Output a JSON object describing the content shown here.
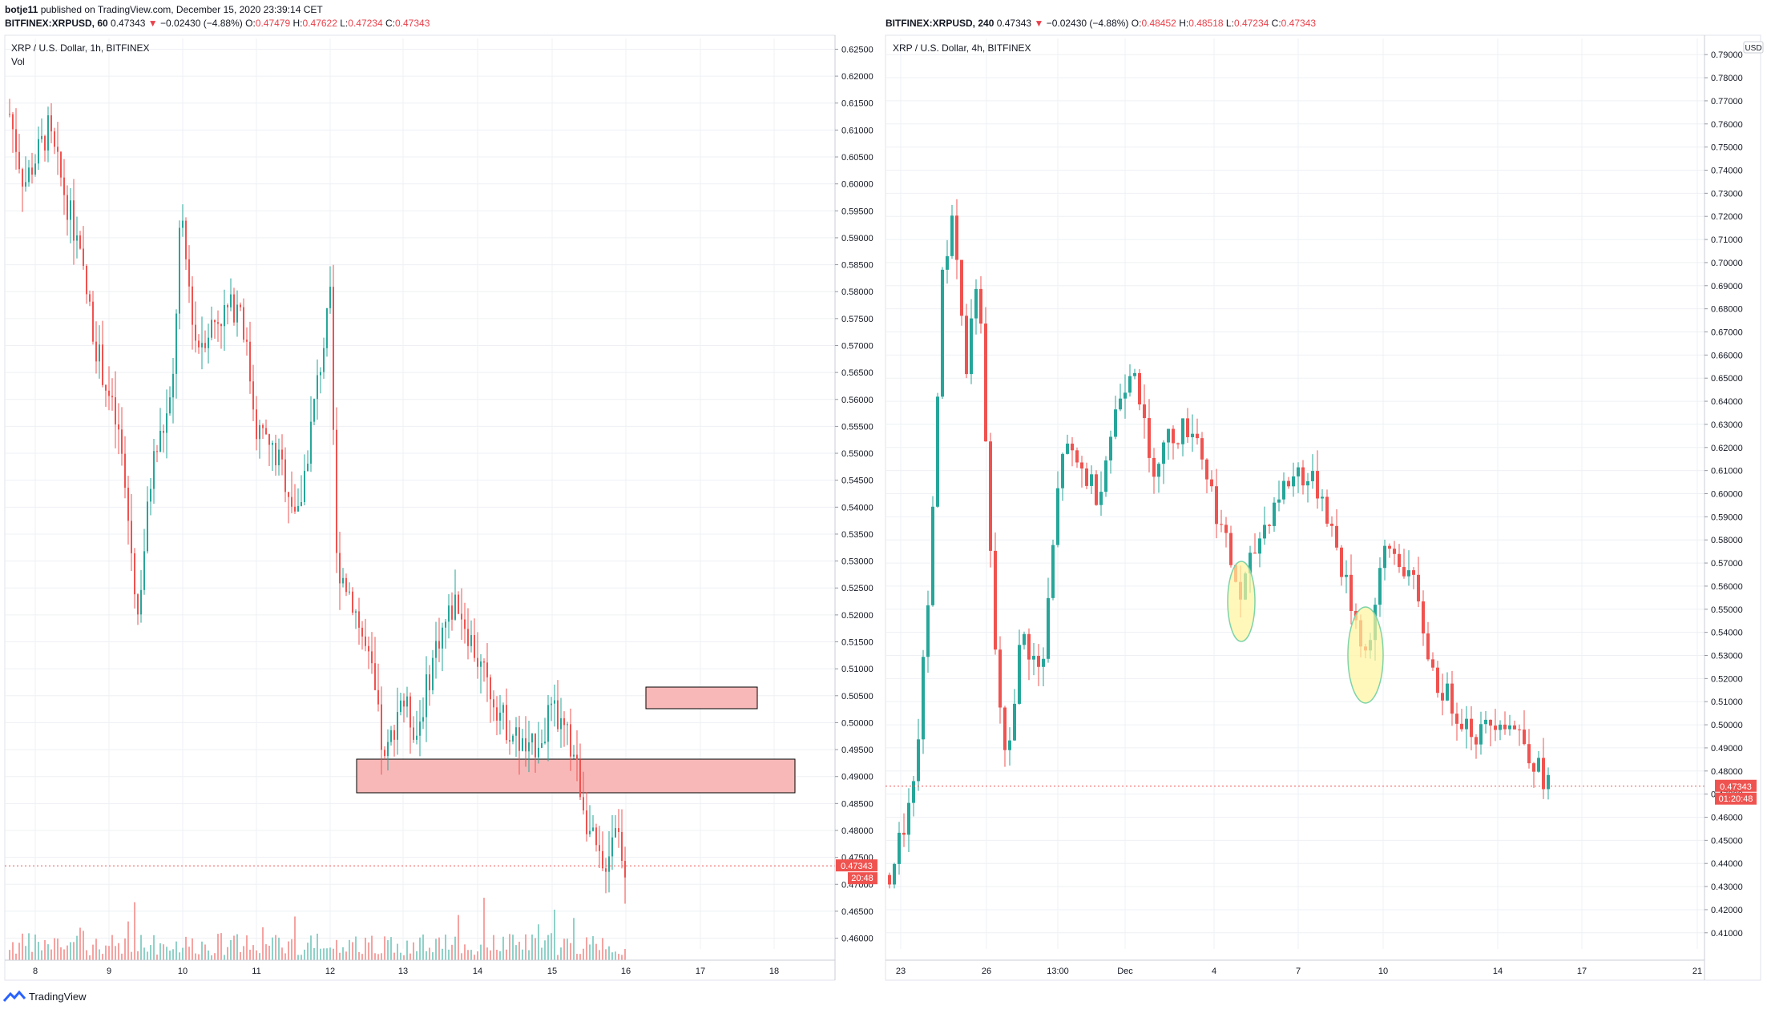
{
  "header": {
    "author": "botje11",
    "published": "published on TradingView.com, December 15, 2020 23:39:14 CET"
  },
  "left": {
    "header": {
      "symbol": "BITFINEX:XRPUSD, 60",
      "last": "0.47343",
      "arrow": "▼",
      "change": "−0.02430 (−4.88%)",
      "o_label": "O:",
      "o_value": "0.47479",
      "h_label": "H:",
      "h_value": "0.47622",
      "l_label": "L:",
      "l_value": "0.47234",
      "c_label": "C:",
      "c_value": "0.47343"
    },
    "title": "XRP / U.S. Dollar, 1h, BITFINEX",
    "vol_label": "Vol",
    "price_tag": "0.47343",
    "time_tag": "20:48",
    "x_ticks": [
      "8",
      "9",
      "10",
      "11",
      "12",
      "13",
      "14",
      "15",
      "16",
      "17",
      "18"
    ],
    "y_ticks": [
      "0.62500",
      "0.62000",
      "0.61500",
      "0.61000",
      "0.60500",
      "0.60000",
      "0.59500",
      "0.59000",
      "0.58500",
      "0.58000",
      "0.57500",
      "0.57000",
      "0.56500",
      "0.56000",
      "0.55500",
      "0.55000",
      "0.54500",
      "0.54000",
      "0.53500",
      "0.53000",
      "0.52500",
      "0.52000",
      "0.51500",
      "0.51000",
      "0.50500",
      "0.50000",
      "0.49500",
      "0.49000",
      "0.48500",
      "0.48000",
      "0.47500",
      "0.47000",
      "0.46500",
      "0.46000"
    ]
  },
  "right": {
    "header": {
      "symbol": "BITFINEX:XRPUSD, 240",
      "last": "0.47343",
      "arrow": "▼",
      "change": "−0.02430 (−4.88%)",
      "o_label": "O:",
      "o_value": "0.48452",
      "h_label": "H:",
      "h_value": "0.48518",
      "l_label": "L:",
      "l_value": "0.47234",
      "c_label": "C:",
      "c_value": "0.47343"
    },
    "title": "XRP / U.S. Dollar, 4h, BITFINEX",
    "currency": "USD",
    "price_tag": "0.47343",
    "time_tag": "01:20:48",
    "x_ticks": [
      "23",
      "26",
      "13:00",
      "Dec",
      "4",
      "7",
      "10",
      "14",
      "17",
      "21"
    ],
    "y_ticks": [
      "0.79000",
      "0.78000",
      "0.77000",
      "0.76000",
      "0.75000",
      "0.74000",
      "0.73000",
      "0.72000",
      "0.71000",
      "0.70000",
      "0.69000",
      "0.68000",
      "0.67000",
      "0.66000",
      "0.65000",
      "0.64000",
      "0.63000",
      "0.62000",
      "0.61000",
      "0.60000",
      "0.59000",
      "0.58000",
      "0.57000",
      "0.56000",
      "0.55000",
      "0.54000",
      "0.53000",
      "0.52000",
      "0.51000",
      "0.50000",
      "0.49000",
      "0.48000",
      "0.47000",
      "0.46000",
      "0.45000",
      "0.44000",
      "0.43000",
      "0.42000",
      "0.41000"
    ]
  },
  "footer": {
    "brand": "TradingView"
  },
  "colors": {
    "up": "#26a69a",
    "down": "#ef5350",
    "zone": "#f8b8b8",
    "highlight": "#fff59d"
  },
  "chart_data": [
    {
      "type": "candlestick",
      "title": "XRP / U.S. Dollar, 1h, BITFINEX",
      "ylim": [
        0.458,
        0.627
      ],
      "x_axis_ticks": [
        "8",
        "9",
        "10",
        "11",
        "12",
        "13",
        "14",
        "15",
        "16",
        "17",
        "18"
      ],
      "series": [
        {
          "name": "Vol",
          "type": "bar"
        }
      ],
      "close_points": [
        {
          "x": "Dec 8 00:00",
          "y": 0.617
        },
        {
          "x": "Dec 8 12:00",
          "y": 0.609
        },
        {
          "x": "Dec 9 00:00",
          "y": 0.552
        },
        {
          "x": "Dec 9 08:00",
          "y": 0.52
        },
        {
          "x": "Dec 10 00:00",
          "y": 0.594
        },
        {
          "x": "Dec 10 12:00",
          "y": 0.572
        },
        {
          "x": "Dec 11 00:00",
          "y": 0.578
        },
        {
          "x": "Dec 11 12:00",
          "y": 0.537
        },
        {
          "x": "Dec 12 00:00",
          "y": 0.579
        },
        {
          "x": "Dec 12 06:00",
          "y": 0.528
        },
        {
          "x": "Dec 13 00:00",
          "y": 0.49
        },
        {
          "x": "Dec 13 12:00",
          "y": 0.523
        },
        {
          "x": "Dec 14 12:00",
          "y": 0.494
        },
        {
          "x": "Dec 15 00:00",
          "y": 0.502
        },
        {
          "x": "Dec 15 12:00",
          "y": 0.472
        },
        {
          "x": "Dec 15 22:00",
          "y": 0.47343
        }
      ],
      "zones": [
        {
          "from_x": "Dec 12 08:00",
          "to_x": "Dec 18 04:00",
          "low": 0.4879,
          "high": 0.4939
        },
        {
          "from_x": "Dec 16 06:00",
          "to_x": "Dec 17 18:00",
          "low": 0.5028,
          "high": 0.5068
        }
      ],
      "last_price": 0.47343
    },
    {
      "type": "candlestick",
      "title": "XRP / U.S. Dollar, 4h, BITFINEX",
      "ylim": [
        0.403,
        0.797
      ],
      "x_axis_ticks": [
        "23",
        "26",
        "13:00",
        "Dec",
        "4",
        "7",
        "10",
        "14",
        "17",
        "21"
      ],
      "close_points": [
        {
          "x": "Nov 23",
          "y": 0.43
        },
        {
          "x": "Nov 24",
          "y": 0.73
        },
        {
          "x": "Nov 25",
          "y": 0.7
        },
        {
          "x": "Nov 26",
          "y": 0.53
        },
        {
          "x": "Nov 27",
          "y": 0.48
        },
        {
          "x": "Nov 28",
          "y": 0.54
        },
        {
          "x": "Nov 29",
          "y": 0.63
        },
        {
          "x": "Nov 30",
          "y": 0.59
        },
        {
          "x": "Dec 1",
          "y": 0.66
        },
        {
          "x": "Dec 2",
          "y": 0.61
        },
        {
          "x": "Dec 3",
          "y": 0.63
        },
        {
          "x": "Dec 4",
          "y": 0.59
        },
        {
          "x": "Dec 5",
          "y": 0.55
        },
        {
          "x": "Dec 6",
          "y": 0.58
        },
        {
          "x": "Dec 7",
          "y": 0.62
        },
        {
          "x": "Dec 8",
          "y": 0.59
        },
        {
          "x": "Dec 9",
          "y": 0.53
        },
        {
          "x": "Dec 10",
          "y": 0.58
        },
        {
          "x": "Dec 11",
          "y": 0.57
        },
        {
          "x": "Dec 12",
          "y": 0.52
        },
        {
          "x": "Dec 13",
          "y": 0.5
        },
        {
          "x": "Dec 14",
          "y": 0.51
        },
        {
          "x": "Dec 15",
          "y": 0.47343
        }
      ],
      "highlights": [
        {
          "x": "Dec 5",
          "y_center": 0.554
        },
        {
          "x": "Dec 9",
          "y_center": 0.531
        }
      ],
      "last_price": 0.47343
    }
  ]
}
